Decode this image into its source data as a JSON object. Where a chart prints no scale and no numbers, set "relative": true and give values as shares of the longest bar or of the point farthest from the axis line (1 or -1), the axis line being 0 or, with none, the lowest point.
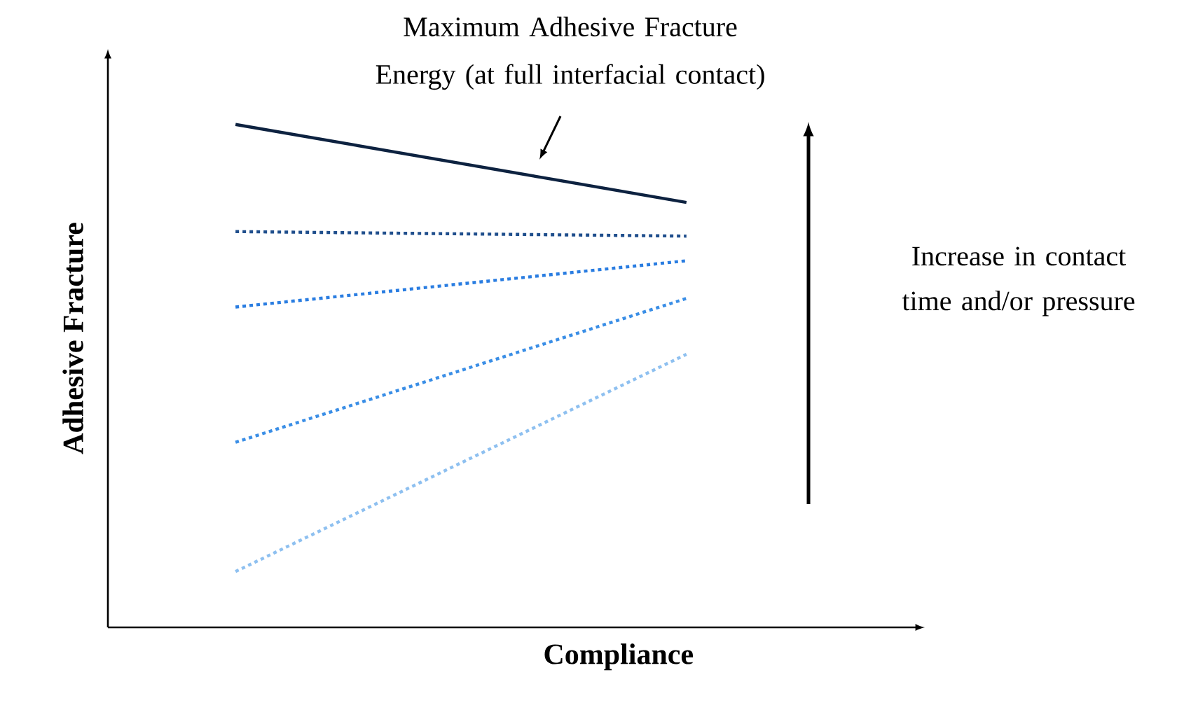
{
  "chart_data": {
    "type": "line",
    "relative": true,
    "xlabel": "Compliance",
    "ylabel": "Adhesive Fracture",
    "marker": "none",
    "categories": [
      null,
      null
    ],
    "series": [
      {
        "color": "#0d2240",
        "line_style": "solid",
        "values": [
          1.0,
          0.845
        ]
      },
      {
        "color": "#1f4e8c",
        "line_style": "dotted",
        "values": [
          0.787,
          0.778
        ]
      },
      {
        "color": "#2a7de1",
        "line_style": "dotted",
        "values": [
          0.637,
          0.729
        ]
      },
      {
        "color": "#3a8ee6",
        "line_style": "dotted",
        "values": [
          0.368,
          0.654
        ]
      },
      {
        "color": "#8ec0f0",
        "line_style": "dotted",
        "values": [
          0.111,
          0.543
        ]
      }
    ],
    "annotations": [
      "Maximum Adhesive Fracture Energy (at full interfacial contact)",
      "Increase in contact time and/or pressure"
    ]
  }
}
